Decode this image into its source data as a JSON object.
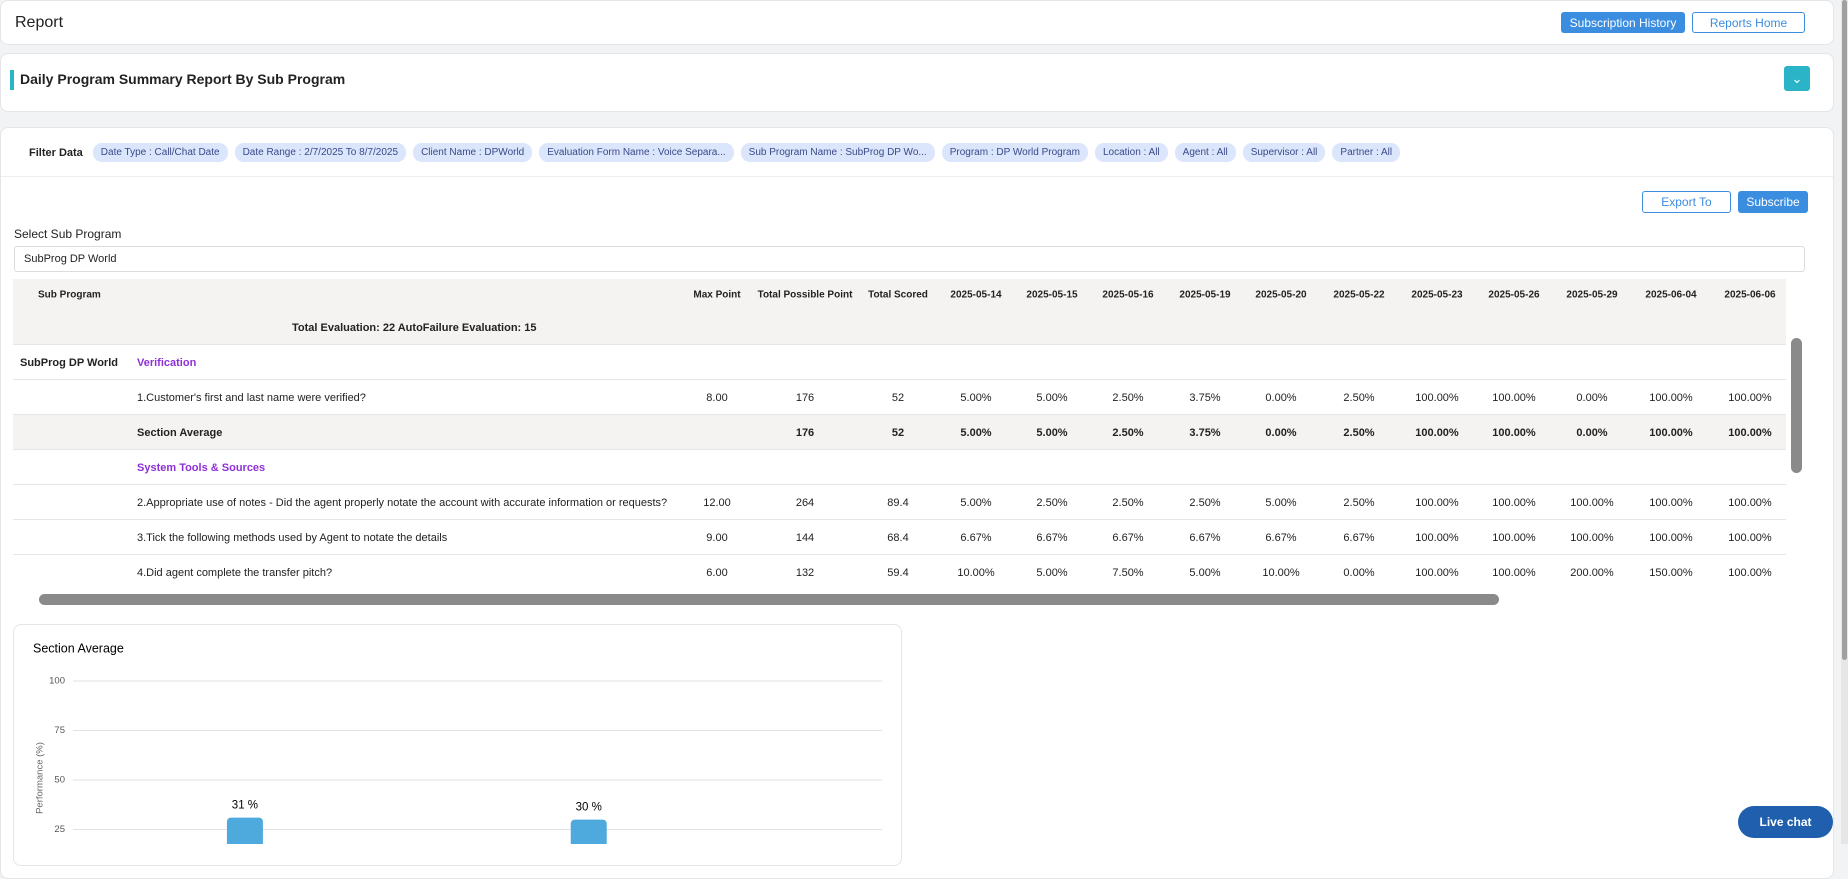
{
  "header": {
    "title": "Report",
    "buttons": [
      "Subscription History",
      "Reports Home"
    ]
  },
  "report": {
    "title": "Daily Program Summary Report By Sub Program"
  },
  "filters": {
    "label": "Filter Data",
    "chips": [
      "Date Type : Call/Chat Date",
      "Date Range : 2/7/2025 To 8/7/2025",
      "Client Name : DPWorld",
      "Evaluation Form Name : Voice Separa...",
      "Sub Program Name : SubProg DP Wo...",
      "Program : DP World Program",
      "Location : All",
      "Agent : All",
      "Supervisor : All",
      "Partner : All"
    ]
  },
  "toolbar": {
    "export": "Export To",
    "subscribe": "Subscribe",
    "select_label": "Select Sub Program",
    "select_value": "SubProg DP World"
  },
  "table": {
    "columns": [
      "Sub Program",
      "Max Point",
      "Total Possible Point",
      "Total Scored",
      "2025-05-14",
      "2025-05-15",
      "2025-05-16",
      "2025-05-19",
      "2025-05-20",
      "2025-05-22",
      "2025-05-23",
      "2025-05-26",
      "2025-05-29",
      "2025-06-04",
      "2025-06-06"
    ],
    "summary": "Total Evaluation: 22 AutoFailure Evaluation: 15",
    "rows": [
      {
        "sub_program": "SubProg DP World",
        "section": "Verification"
      },
      {
        "label": "1.Customer's first and last name were verified?",
        "cells": [
          "8.00",
          "176",
          "52",
          "5.00%",
          "5.00%",
          "2.50%",
          "3.75%",
          "0.00%",
          "2.50%",
          "100.00%",
          "100.00%",
          "0.00%",
          "100.00%",
          "100.00%"
        ]
      },
      {
        "label": "Section Average",
        "cells": [
          null,
          "176",
          "52",
          "5.00%",
          "5.00%",
          "2.50%",
          "3.75%",
          "0.00%",
          "2.50%",
          "100.00%",
          "100.00%",
          "0.00%",
          "100.00%",
          "100.00%"
        ]
      },
      {
        "section": "System Tools & Sources"
      },
      {
        "label": "2.Appropriate use of notes - Did the agent properly notate the account with accurate information or requests?",
        "cells": [
          "12.00",
          "264",
          "89.4",
          "5.00%",
          "2.50%",
          "2.50%",
          "2.50%",
          "5.00%",
          "2.50%",
          "100.00%",
          "100.00%",
          "100.00%",
          "100.00%",
          "100.00%"
        ]
      },
      {
        "label": "3.Tick the following methods used by Agent to notate the details",
        "cells": [
          "9.00",
          "144",
          "68.4",
          "6.67%",
          "6.67%",
          "6.67%",
          "6.67%",
          "6.67%",
          "6.67%",
          "100.00%",
          "100.00%",
          "100.00%",
          "100.00%",
          "100.00%"
        ]
      },
      {
        "label": "4.Did agent complete the transfer pitch?",
        "cells": [
          "6.00",
          "132",
          "59.4",
          "10.00%",
          "5.00%",
          "7.50%",
          "5.00%",
          "10.00%",
          "0.00%",
          "100.00%",
          "100.00%",
          "200.00%",
          "150.00%",
          "100.00%"
        ]
      }
    ]
  },
  "chart_data": {
    "type": "bar",
    "title": "Section Average",
    "ylabel": "Performance (%)",
    "categories": [
      null,
      null
    ],
    "values": [
      31,
      30
    ],
    "value_labels": [
      "31 %",
      "30 %"
    ],
    "color": "#4ea9dc",
    "ylim": [
      0,
      100
    ],
    "yticks": [
      25,
      50,
      75,
      100
    ],
    "grid": true
  },
  "live_chat": "Live chat"
}
